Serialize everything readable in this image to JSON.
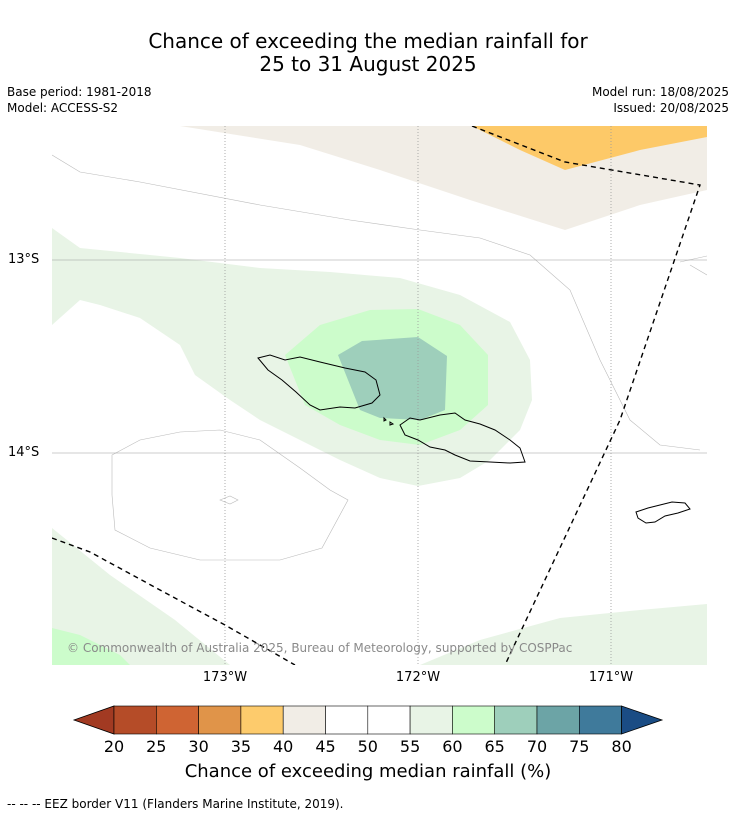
{
  "title_line1": "Chance of exceeding the median rainfall for",
  "title_line2": "25 to 31 August 2025",
  "meta": {
    "base_period": "Base period: 1981-2018",
    "model": "Model: ACCESS-S2",
    "model_run": "Model run: 18/08/2025",
    "issued": "Issued: 20/08/2025"
  },
  "map": {
    "lon_labels": [
      "173°W",
      "172°W",
      "171°W"
    ],
    "lat_labels": [
      "13°S",
      "14°S"
    ],
    "copyright": "© Commonwealth of Australia 2025, Bureau of Meteorology, supported by COSPPac",
    "colors": {
      "c35_40": "#fdc968",
      "c40_45": "#f1ede6",
      "c55_60": "#e8f4e6",
      "c60_65": "#ccfccb",
      "c65_70": "#9ecfbb",
      "border": "#000000"
    }
  },
  "colorbar": {
    "ticks": [
      "20",
      "25",
      "30",
      "35",
      "40",
      "45",
      "50",
      "55",
      "60",
      "65",
      "70",
      "75",
      "80"
    ],
    "colors": [
      "#a23a22",
      "#b54c28",
      "#cf6433",
      "#e09449",
      "#fdcb6c",
      "#f1ede6",
      "#ffffff",
      "#ffffff",
      "#e8f4e6",
      "#ccfccb",
      "#9ecfbb",
      "#6ca4a6",
      "#3f7a9b",
      "#1a4c84"
    ],
    "title": "Chance of exceeding median rainfall (%)"
  },
  "footnote": "--  --  -- EEZ border V11 (Flanders Marine Institute, 2019)."
}
